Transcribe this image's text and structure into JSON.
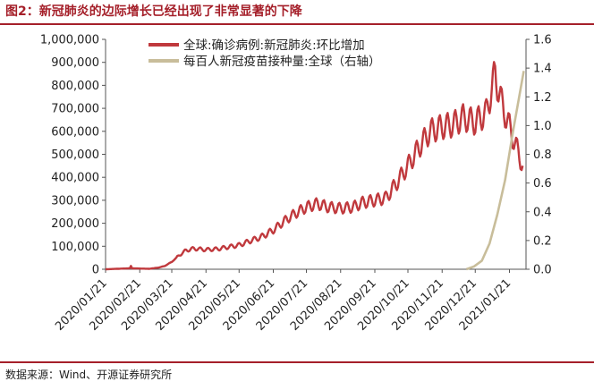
{
  "title": "图2：新冠肺炎的边际增长已经出现了非常显著的下降",
  "source": "数据来源：Wind、开源证券研究所",
  "chart_data": {
    "type": "line",
    "x_ticks": [
      "2020/01/21",
      "2020/02/21",
      "2020/03/21",
      "2020/04/21",
      "2020/05/21",
      "2020/06/21",
      "2020/07/21",
      "2020/08/21",
      "2020/09/21",
      "2020/10/21",
      "2020/11/21",
      "2020/12/21",
      "2021/01/21"
    ],
    "y_left": {
      "ticks": [
        "0",
        "100,000",
        "200,000",
        "300,000",
        "400,000",
        "500,000",
        "600,000",
        "700,000",
        "800,000",
        "900,000",
        "1,000,000"
      ],
      "min": 0,
      "max": 1000000
    },
    "y_right": {
      "ticks": [
        "0.0",
        "0.2",
        "0.4",
        "0.6",
        "0.8",
        "1.0",
        "1.2",
        "1.4",
        "1.6"
      ],
      "min": 0,
      "max": 1.6
    },
    "legend_placement": "top",
    "series": [
      {
        "name": "全球:确诊病例:新冠肺炎:环比增加",
        "color": "#c0393d",
        "axis": "left",
        "points": [
          [
            "2020-01-21",
            0
          ],
          [
            "2020-02-01",
            2000
          ],
          [
            "2020-02-12",
            4000
          ],
          [
            "2020-02-13",
            14000
          ],
          [
            "2020-02-14",
            4000
          ],
          [
            "2020-02-21",
            3000
          ],
          [
            "2020-03-01",
            2000
          ],
          [
            "2020-03-10",
            8000
          ],
          [
            "2020-03-15",
            15000
          ],
          [
            "2020-03-21",
            32000
          ],
          [
            "2020-03-28",
            62000
          ],
          [
            "2020-04-03",
            82000
          ],
          [
            "2020-04-10",
            90000
          ],
          [
            "2020-04-21",
            85000
          ],
          [
            "2020-05-01",
            88000
          ],
          [
            "2020-05-21",
            105000
          ],
          [
            "2020-06-01",
            125000
          ],
          [
            "2020-06-10",
            140000
          ],
          [
            "2020-06-21",
            170000
          ],
          [
            "2020-07-01",
            210000
          ],
          [
            "2020-07-10",
            240000
          ],
          [
            "2020-07-21",
            270000
          ],
          [
            "2020-07-31",
            285000
          ],
          [
            "2020-08-10",
            270000
          ],
          [
            "2020-08-21",
            265000
          ],
          [
            "2020-09-01",
            270000
          ],
          [
            "2020-09-10",
            290000
          ],
          [
            "2020-09-21",
            300000
          ],
          [
            "2020-10-01",
            310000
          ],
          [
            "2020-10-10",
            370000
          ],
          [
            "2020-10-21",
            450000
          ],
          [
            "2020-10-31",
            530000
          ],
          [
            "2020-11-10",
            600000
          ],
          [
            "2020-11-21",
            620000
          ],
          [
            "2020-12-01",
            630000
          ],
          [
            "2020-12-10",
            660000
          ],
          [
            "2020-12-21",
            640000
          ],
          [
            "2020-12-31",
            680000
          ],
          [
            "2021-01-08",
            850000
          ],
          [
            "2021-01-14",
            720000
          ],
          [
            "2021-01-21",
            620000
          ],
          [
            "2021-01-28",
            520000
          ],
          [
            "2021-02-02",
            450000
          ]
        ]
      },
      {
        "name": "每百人新冠疫苗接种量:全球（右轴）",
        "color": "#c8bd9a",
        "axis": "right",
        "points": [
          [
            "2020-12-13",
            0.0
          ],
          [
            "2020-12-20",
            0.02
          ],
          [
            "2020-12-27",
            0.06
          ],
          [
            "2021-01-03",
            0.18
          ],
          [
            "2021-01-10",
            0.38
          ],
          [
            "2021-01-17",
            0.62
          ],
          [
            "2021-01-24",
            0.95
          ],
          [
            "2021-01-31",
            1.25
          ],
          [
            "2021-02-03",
            1.38
          ]
        ]
      }
    ]
  }
}
